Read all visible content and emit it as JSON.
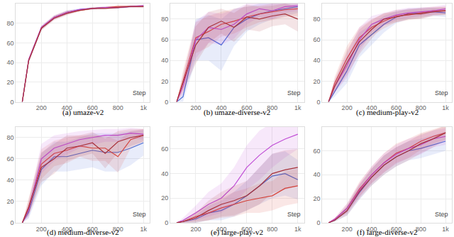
{
  "chart_data": [
    {
      "type": "line",
      "title": "(a) umaze-v2",
      "xlabel": "Step",
      "grid": true,
      "x": [
        50,
        100,
        200,
        300,
        400,
        500,
        600,
        700,
        800,
        900,
        1000
      ],
      "xlim": [
        0,
        1050
      ],
      "xticks": [
        200,
        400,
        600,
        800,
        {
          "value": 1000,
          "label": "1k"
        }
      ],
      "ylim": [
        0,
        100
      ],
      "yticks": [
        0,
        20,
        40,
        60,
        80
      ],
      "series": [
        {
          "color": "#4a6fd6",
          "values": [
            0,
            42,
            75,
            86,
            91,
            94,
            95,
            96,
            96,
            97,
            97
          ],
          "error": [
            0,
            2,
            2,
            2,
            2,
            1,
            1,
            1,
            1,
            1,
            1
          ]
        },
        {
          "color": "#d9453a",
          "values": [
            0,
            42,
            75,
            86,
            91,
            93,
            95,
            96,
            97,
            97,
            97
          ],
          "error": [
            0,
            2,
            2,
            2,
            2,
            1,
            1,
            1,
            1,
            1,
            1
          ]
        },
        {
          "color": "#c04fd6",
          "values": [
            0,
            43,
            76,
            86,
            91,
            94,
            95,
            96,
            96,
            97,
            98
          ],
          "error": [
            0,
            2,
            2,
            2,
            2,
            1,
            1,
            1,
            1,
            1,
            1
          ]
        },
        {
          "color": "#a8323a",
          "values": [
            0,
            42,
            75,
            85,
            90,
            93,
            95,
            95,
            96,
            97,
            97
          ],
          "error": [
            0,
            2,
            2,
            2,
            2,
            1,
            1,
            1,
            1,
            1,
            1
          ]
        }
      ]
    },
    {
      "type": "line",
      "title": "(b) umaze-diverse-v2",
      "xlabel": "Step",
      "grid": true,
      "x": [
        50,
        100,
        200,
        300,
        400,
        500,
        600,
        700,
        800,
        900,
        1000
      ],
      "xlim": [
        0,
        1050
      ],
      "xticks": [
        200,
        400,
        600,
        800,
        {
          "value": 1000,
          "label": "1k"
        }
      ],
      "ylim": [
        0,
        95
      ],
      "yticks": [
        0,
        20,
        40,
        60,
        80
      ],
      "series": [
        {
          "color": "#4a6fd6",
          "values": [
            0,
            5,
            60,
            62,
            55,
            72,
            80,
            85,
            88,
            90,
            92
          ],
          "error": [
            0,
            5,
            20,
            22,
            25,
            18,
            12,
            10,
            8,
            7,
            6
          ]
        },
        {
          "color": "#d9453a",
          "values": [
            0,
            20,
            62,
            68,
            75,
            78,
            82,
            85,
            87,
            89,
            90
          ],
          "error": [
            0,
            10,
            15,
            15,
            12,
            12,
            10,
            8,
            8,
            7,
            7
          ]
        },
        {
          "color": "#c04fd6",
          "values": [
            0,
            15,
            60,
            72,
            70,
            75,
            85,
            90,
            88,
            92,
            93
          ],
          "error": [
            0,
            8,
            18,
            15,
            15,
            14,
            10,
            8,
            8,
            6,
            5
          ]
        },
        {
          "color": "#a8323a",
          "values": [
            0,
            18,
            55,
            72,
            78,
            72,
            82,
            80,
            83,
            85,
            80
          ],
          "error": [
            0,
            8,
            18,
            15,
            12,
            14,
            12,
            12,
            10,
            10,
            12
          ]
        }
      ]
    },
    {
      "type": "line",
      "title": "(c) medium-play-v2",
      "xlabel": "Step",
      "grid": true,
      "x": [
        50,
        100,
        200,
        300,
        400,
        500,
        600,
        700,
        800,
        900,
        1000
      ],
      "xlim": [
        0,
        1050
      ],
      "xticks": [
        200,
        400,
        600,
        800,
        {
          "value": 1000,
          "label": "1k"
        }
      ],
      "ylim": [
        0,
        95
      ],
      "yticks": [
        0,
        20,
        40,
        60,
        80
      ],
      "series": [
        {
          "color": "#4a6fd6",
          "values": [
            0,
            10,
            30,
            55,
            65,
            75,
            82,
            85,
            86,
            87,
            86
          ],
          "error": [
            0,
            5,
            12,
            12,
            10,
            8,
            6,
            5,
            5,
            4,
            4
          ]
        },
        {
          "color": "#d9453a",
          "values": [
            0,
            18,
            42,
            62,
            72,
            78,
            83,
            84,
            86,
            88,
            88
          ],
          "error": [
            0,
            6,
            12,
            10,
            8,
            7,
            6,
            5,
            5,
            4,
            4
          ]
        },
        {
          "color": "#c04fd6",
          "values": [
            0,
            15,
            35,
            60,
            75,
            80,
            84,
            86,
            87,
            88,
            90
          ],
          "error": [
            0,
            6,
            12,
            12,
            8,
            6,
            5,
            5,
            4,
            4,
            4
          ]
        },
        {
          "color": "#a8323a",
          "values": [
            0,
            15,
            38,
            58,
            70,
            80,
            82,
            85,
            85,
            87,
            88
          ],
          "error": [
            0,
            6,
            12,
            12,
            9,
            6,
            5,
            5,
            5,
            4,
            4
          ]
        }
      ]
    },
    {
      "type": "line",
      "title": "(d) medium-diverse-v2",
      "xlabel": "Step",
      "grid": true,
      "x": [
        50,
        100,
        200,
        300,
        400,
        500,
        600,
        700,
        800,
        900,
        1000
      ],
      "xlim": [
        0,
        1050
      ],
      "xticks": [
        200,
        400,
        600,
        800,
        {
          "value": 1000,
          "label": "1k"
        }
      ],
      "ylim": [
        0,
        90
      ],
      "yticks": [
        0,
        20,
        40,
        60,
        80
      ],
      "series": [
        {
          "color": "#4a6fd6",
          "values": [
            0,
            10,
            50,
            62,
            62,
            65,
            68,
            66,
            66,
            70,
            75
          ],
          "error": [
            0,
            6,
            15,
            14,
            14,
            15,
            16,
            18,
            18,
            16,
            12
          ]
        },
        {
          "color": "#d9453a",
          "values": [
            0,
            15,
            55,
            65,
            68,
            72,
            70,
            70,
            62,
            78,
            82
          ],
          "error": [
            0,
            8,
            14,
            12,
            12,
            10,
            12,
            12,
            15,
            8,
            6
          ]
        },
        {
          "color": "#c04fd6",
          "values": [
            0,
            12,
            60,
            70,
            74,
            78,
            80,
            82,
            82,
            84,
            83
          ],
          "error": [
            0,
            7,
            14,
            12,
            10,
            8,
            7,
            6,
            6,
            5,
            5
          ]
        },
        {
          "color": "#a8323a",
          "values": [
            0,
            14,
            52,
            60,
            70,
            72,
            75,
            65,
            76,
            80,
            82
          ],
          "error": [
            0,
            7,
            14,
            14,
            12,
            10,
            10,
            14,
            10,
            8,
            6
          ]
        }
      ]
    },
    {
      "type": "line",
      "title": "(e) large-play-v2",
      "xlabel": "Step",
      "grid": true,
      "x": [
        50,
        100,
        200,
        300,
        400,
        500,
        600,
        700,
        800,
        900,
        1000
      ],
      "xlim": [
        0,
        1050
      ],
      "xticks": [
        200,
        400,
        600,
        800,
        {
          "value": 1000,
          "label": "1k"
        }
      ],
      "ylim": [
        0,
        78
      ],
      "yticks": [
        0,
        20,
        40,
        60
      ],
      "series": [
        {
          "color": "#4a6fd6",
          "values": [
            0,
            1,
            3,
            8,
            10,
            15,
            22,
            30,
            38,
            40,
            35
          ],
          "error": [
            0,
            1,
            3,
            6,
            8,
            10,
            12,
            15,
            18,
            18,
            16
          ]
        },
        {
          "color": "#d9453a",
          "values": [
            0,
            1,
            5,
            8,
            12,
            15,
            18,
            20,
            22,
            28,
            30
          ],
          "error": [
            0,
            1,
            4,
            6,
            8,
            10,
            10,
            12,
            12,
            14,
            14
          ]
        },
        {
          "color": "#c04fd6",
          "values": [
            0,
            2,
            8,
            15,
            20,
            30,
            45,
            55,
            63,
            68,
            72
          ],
          "error": [
            0,
            2,
            6,
            10,
            12,
            15,
            18,
            20,
            18,
            15,
            12
          ]
        },
        {
          "color": "#a8323a",
          "values": [
            0,
            1,
            4,
            10,
            15,
            18,
            22,
            30,
            40,
            43,
            45
          ],
          "error": [
            0,
            1,
            4,
            8,
            10,
            12,
            12,
            15,
            16,
            16,
            15
          ]
        }
      ]
    },
    {
      "type": "line",
      "title": "(f) large-diverse-v2",
      "xlabel": "Step",
      "grid": true,
      "x": [
        50,
        100,
        200,
        300,
        400,
        500,
        600,
        700,
        800,
        900,
        1000
      ],
      "xlim": [
        0,
        1050
      ],
      "xticks": [
        200,
        400,
        600,
        800,
        {
          "value": 1000,
          "label": "1k"
        }
      ],
      "ylim": [
        0,
        80
      ],
      "yticks": [
        0,
        20,
        40,
        60
      ],
      "series": [
        {
          "color": "#4a6fd6",
          "values": [
            0,
            2,
            10,
            25,
            38,
            48,
            55,
            60,
            62,
            65,
            68
          ],
          "error": [
            0,
            1,
            4,
            6,
            7,
            8,
            8,
            8,
            8,
            8,
            8
          ]
        },
        {
          "color": "#d9453a",
          "values": [
            0,
            3,
            12,
            28,
            40,
            50,
            58,
            62,
            68,
            72,
            75
          ],
          "error": [
            0,
            1,
            4,
            6,
            7,
            8,
            8,
            8,
            7,
            6,
            6
          ]
        },
        {
          "color": "#c04fd6",
          "values": [
            0,
            3,
            12,
            27,
            40,
            50,
            57,
            62,
            65,
            70,
            72
          ],
          "error": [
            0,
            1,
            4,
            6,
            7,
            8,
            8,
            8,
            8,
            7,
            7
          ]
        },
        {
          "color": "#a8323a",
          "values": [
            0,
            2,
            10,
            26,
            38,
            48,
            55,
            60,
            66,
            70,
            75
          ],
          "error": [
            0,
            1,
            4,
            6,
            7,
            8,
            8,
            8,
            8,
            7,
            6
          ]
        }
      ]
    }
  ]
}
